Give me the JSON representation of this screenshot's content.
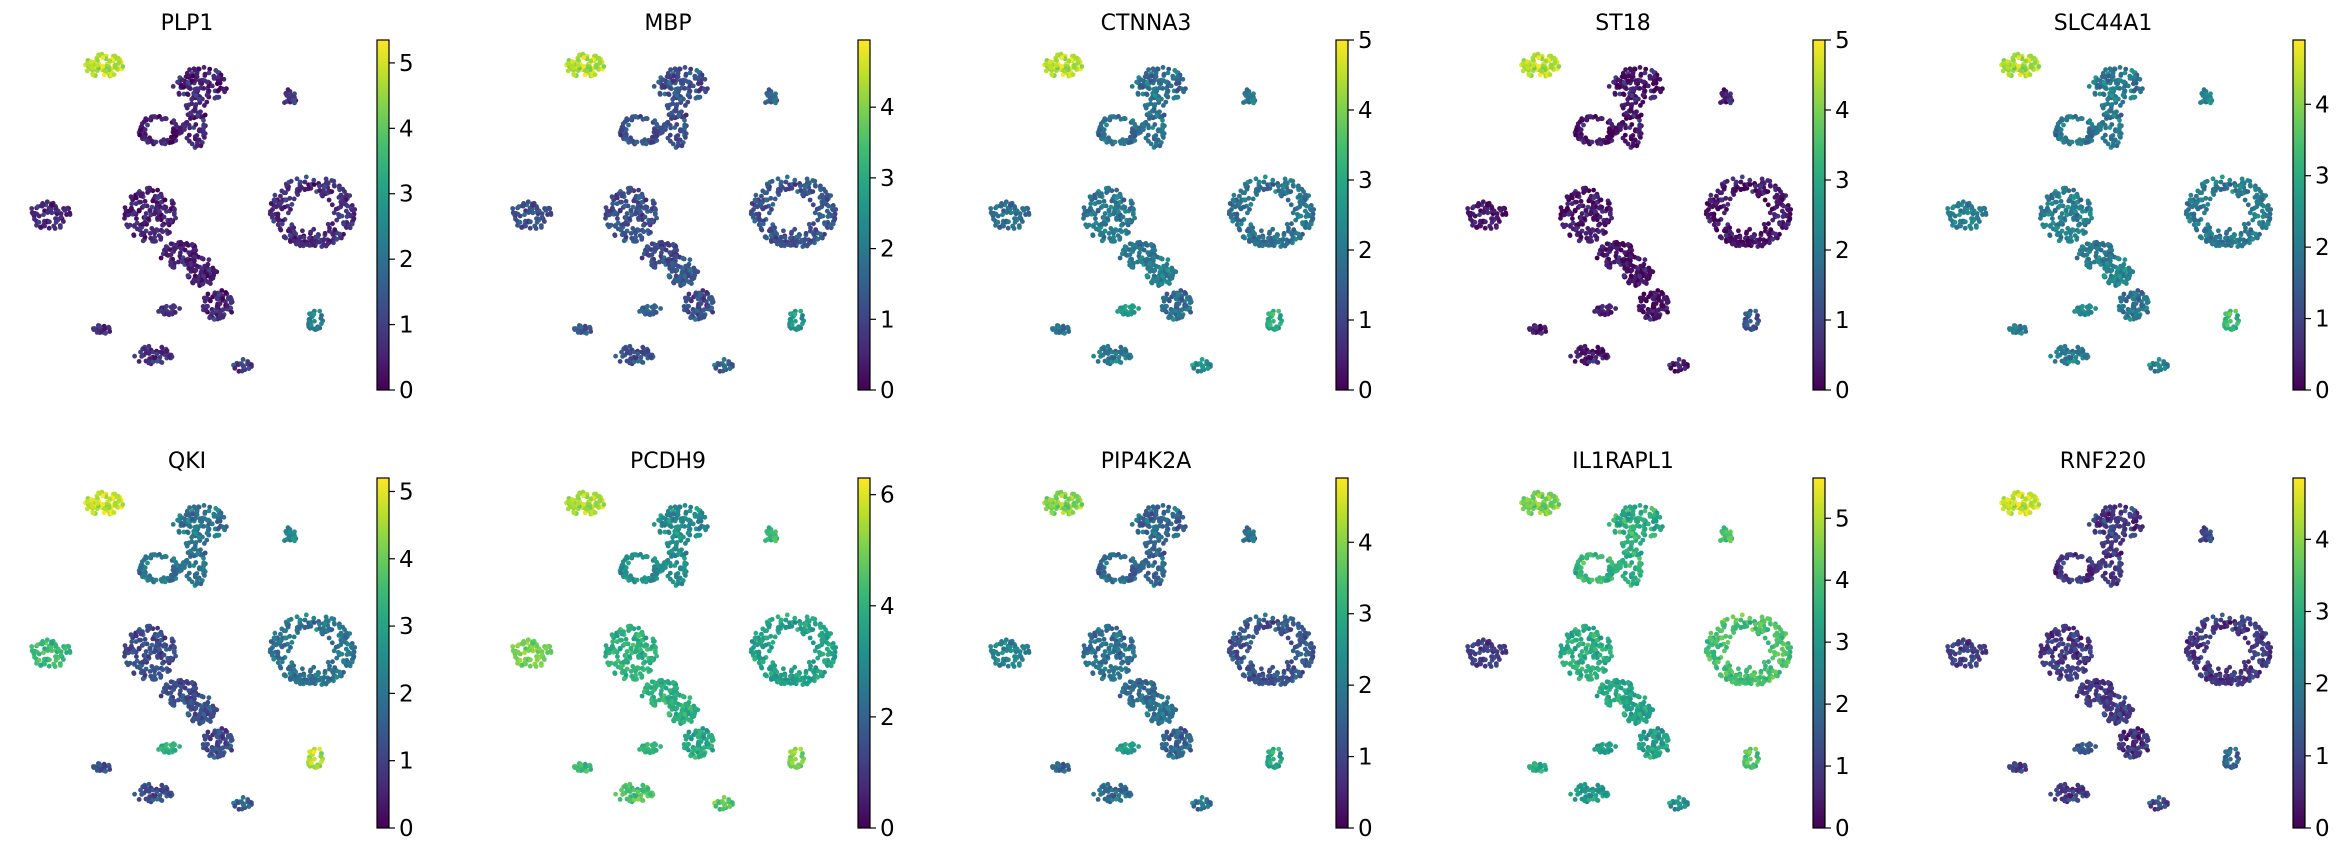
{
  "chart_data": [
    {
      "type": "scatter",
      "title": "PLP1",
      "colorbar": {
        "min": 0,
        "max": 5.35,
        "ticks": [
          0,
          1,
          2,
          3,
          4,
          5
        ]
      },
      "cluster_means": [
        4.8,
        0.5,
        0.5,
        0.6,
        0.8,
        0.6,
        0.5,
        0.5,
        0.5,
        0.6,
        0.7,
        2.2,
        0.6,
        0.7,
        0.9,
        0.6
      ]
    },
    {
      "type": "scatter",
      "title": "MBP",
      "colorbar": {
        "min": 0,
        "max": 4.95,
        "ticks": [
          0,
          1,
          2,
          3,
          4
        ]
      },
      "cluster_means": [
        4.4,
        1.2,
        1.3,
        1.2,
        1.6,
        1.2,
        1.2,
        1.1,
        1.4,
        1.2,
        1.3,
        2.5,
        1.3,
        1.2,
        1.5,
        1.4
      ]
    },
    {
      "type": "scatter",
      "title": "CTNNA3",
      "colorbar": {
        "min": 0,
        "max": 5.0,
        "ticks": [
          0,
          1,
          2,
          3,
          4,
          5
        ]
      },
      "cluster_means": [
        4.5,
        1.8,
        1.9,
        1.9,
        2.0,
        1.8,
        2.0,
        2.0,
        2.2,
        1.8,
        1.9,
        3.0,
        1.8,
        2.0,
        2.4,
        2.6
      ]
    },
    {
      "type": "scatter",
      "title": "ST18",
      "colorbar": {
        "min": 0,
        "max": 5.0,
        "ticks": [
          0,
          1,
          2,
          3,
          4,
          5
        ]
      },
      "cluster_means": [
        4.5,
        0.3,
        0.3,
        0.3,
        0.4,
        0.3,
        0.3,
        0.3,
        0.3,
        0.2,
        0.3,
        1.2,
        0.3,
        0.3,
        0.3,
        0.3
      ]
    },
    {
      "type": "scatter",
      "title": "SLC44A1",
      "colorbar": {
        "min": 0,
        "max": 4.9,
        "ticks": [
          0,
          1,
          2,
          3,
          4
        ]
      },
      "cluster_means": [
        4.3,
        2.0,
        2.0,
        2.0,
        2.2,
        2.1,
        2.1,
        2.0,
        2.3,
        1.9,
        2.0,
        3.2,
        2.0,
        2.0,
        2.1,
        2.2
      ]
    },
    {
      "type": "scatter",
      "title": "QKI",
      "colorbar": {
        "min": 0,
        "max": 5.2,
        "ticks": [
          0,
          1,
          2,
          3,
          4,
          5
        ]
      },
      "cluster_means": [
        4.8,
        2.0,
        2.1,
        2.0,
        2.4,
        3.5,
        1.2,
        1.2,
        1.3,
        1.2,
        2.0,
        4.5,
        1.2,
        1.2,
        1.5,
        3.2
      ]
    },
    {
      "type": "scatter",
      "title": "PCDH9",
      "colorbar": {
        "min": 0,
        "max": 6.3,
        "ticks": [
          0,
          2,
          4,
          6
        ]
      },
      "cluster_means": [
        5.5,
        3.0,
        3.2,
        3.1,
        4.2,
        5.0,
        4.0,
        4.0,
        4.0,
        3.8,
        3.6,
        5.0,
        4.2,
        4.5,
        4.6,
        4.0
      ]
    },
    {
      "type": "scatter",
      "title": "PIP4K2A",
      "colorbar": {
        "min": 0,
        "max": 4.9,
        "ticks": [
          0,
          1,
          2,
          3,
          4
        ]
      },
      "cluster_means": [
        4.0,
        1.6,
        1.7,
        1.6,
        1.8,
        2.2,
        1.8,
        1.7,
        1.9,
        1.6,
        1.3,
        2.8,
        1.5,
        1.7,
        1.8,
        2.6
      ]
    },
    {
      "type": "scatter",
      "title": "IL1RAPL1",
      "colorbar": {
        "min": 0,
        "max": 5.65,
        "ticks": [
          0,
          1,
          2,
          3,
          4,
          5
        ]
      },
      "cluster_means": [
        4.5,
        3.5,
        3.8,
        3.6,
        4.0,
        1.0,
        3.5,
        3.4,
        3.3,
        3.2,
        4.0,
        4.0,
        3.4,
        3.0,
        2.8,
        3.0
      ]
    },
    {
      "type": "scatter",
      "title": "RNF220",
      "colorbar": {
        "min": 0,
        "max": 4.85,
        "ticks": [
          0,
          1,
          2,
          3,
          4
        ]
      },
      "cluster_means": [
        4.5,
        0.8,
        0.8,
        0.8,
        1.0,
        0.9,
        0.8,
        0.8,
        0.9,
        0.7,
        0.8,
        1.5,
        0.8,
        0.8,
        1.0,
        1.2
      ]
    }
  ],
  "colormap": "viridis"
}
